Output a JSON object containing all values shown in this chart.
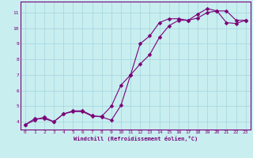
{
  "xlabel": "Windchill (Refroidissement éolien,°C)",
  "bg_color": "#c8eef0",
  "line_color": "#7b0078",
  "grid_color": "#a8d8e0",
  "ylim": [
    3.5,
    11.7
  ],
  "xlim": [
    -0.5,
    23.5
  ],
  "yticks": [
    4,
    5,
    6,
    7,
    8,
    9,
    10,
    11
  ],
  "xticks": [
    0,
    1,
    2,
    3,
    4,
    5,
    6,
    7,
    8,
    9,
    10,
    11,
    12,
    13,
    14,
    15,
    16,
    17,
    18,
    19,
    20,
    21,
    22,
    23
  ],
  "line1_x": [
    0,
    1,
    2,
    3,
    4,
    5,
    6,
    7,
    8,
    9,
    10,
    11,
    12,
    13,
    14,
    15,
    16,
    17,
    18,
    19,
    20,
    21,
    22,
    23
  ],
  "line1_y": [
    3.8,
    4.2,
    4.2,
    4.0,
    4.5,
    4.7,
    4.7,
    4.4,
    4.3,
    4.1,
    5.05,
    7.0,
    9.0,
    9.5,
    10.35,
    10.6,
    10.6,
    10.5,
    10.9,
    11.25,
    11.1,
    10.35,
    10.3,
    10.5
  ],
  "line2_x": [
    0,
    1,
    2,
    3,
    4,
    5,
    6,
    7,
    8,
    9,
    10,
    11,
    12,
    13,
    14,
    15,
    16,
    17,
    18,
    19,
    20,
    21,
    22,
    23
  ],
  "line2_y": [
    3.8,
    4.1,
    4.3,
    4.0,
    4.5,
    4.65,
    4.65,
    4.35,
    4.35,
    5.0,
    6.35,
    7.0,
    7.7,
    8.3,
    9.4,
    10.15,
    10.5,
    10.5,
    10.65,
    11.0,
    11.1,
    11.1,
    10.5,
    10.5
  ]
}
